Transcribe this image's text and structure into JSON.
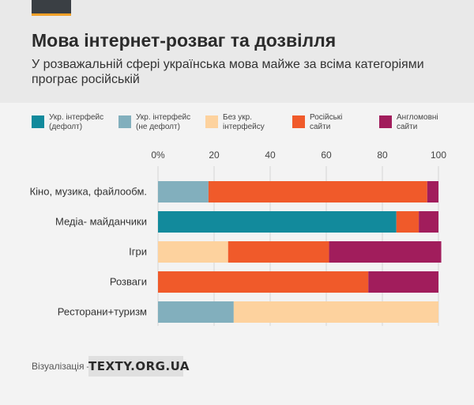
{
  "header": {
    "title": "Мова інтернет-розваг та дозвілля",
    "subtitle": "У розважальній сфері українська мова майже за всіма категоріями програє російській"
  },
  "legend": [
    {
      "label": "Укр. інтерфейс\n(дефолт)",
      "color": "#128a9c"
    },
    {
      "label": "Укр. інтерфейс\n(не дефолт)",
      "color": "#82afbd"
    },
    {
      "label": "Без укр.\nінтерфейсу",
      "color": "#fdd29e"
    },
    {
      "label": "Російські\nсайти",
      "color": "#f05a2a"
    },
    {
      "label": "Англомовні\nсайти",
      "color": "#a11d5c"
    }
  ],
  "chart_data": {
    "type": "bar",
    "orientation": "horizontal",
    "stacked": true,
    "categories": [
      "Кіно, музика, файлообм.",
      "Медіа- майданчики",
      "Ігри",
      "Розваги",
      "Ресторани+туризм"
    ],
    "series": [
      {
        "name": "Укр. інтерфейс (дефолт)",
        "color": "#128a9c",
        "values": [
          0,
          85,
          0,
          0,
          0
        ]
      },
      {
        "name": "Укр. інтерфейс (не дефолт)",
        "color": "#82afbd",
        "values": [
          18,
          0,
          0,
          0,
          27
        ]
      },
      {
        "name": "Без укр. інтерфейсу",
        "color": "#fdd29e",
        "values": [
          0,
          0,
          25,
          0,
          73
        ]
      },
      {
        "name": "Російські сайти",
        "color": "#f05a2a",
        "values": [
          78,
          8,
          36,
          75,
          0
        ]
      },
      {
        "name": "Англомовні сайти",
        "color": "#a11d5c",
        "values": [
          4,
          7,
          40,
          25,
          0
        ]
      }
    ],
    "xlim": [
      0,
      100
    ],
    "xticks": [
      "0%",
      "20",
      "40",
      "60",
      "80",
      "100"
    ],
    "grid": true,
    "legend_position": "top"
  },
  "footer": {
    "label": "Візуалізація —",
    "logo": "TEXTY.ORG.UA"
  }
}
